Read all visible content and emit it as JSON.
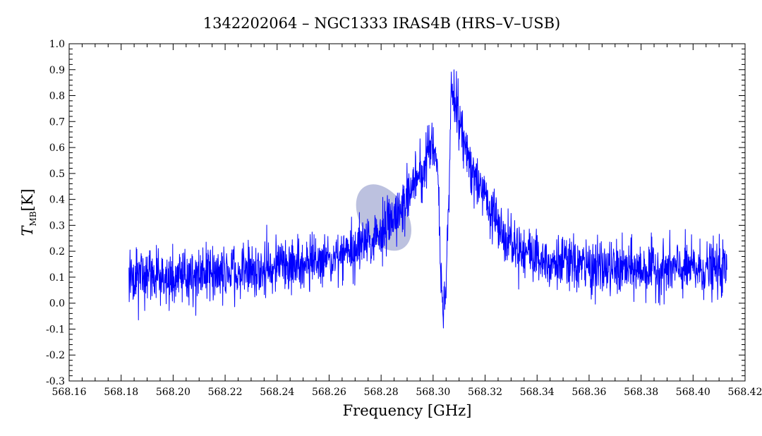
{
  "chart_data": {
    "type": "line",
    "title": "1342202064 – NGC1333 IRAS4B (HRS–V–USB)",
    "xlabel": "Frequency [GHz]",
    "ylabel_main": "T",
    "ylabel_sub": "MB",
    "ylabel_unit": "[K]",
    "xlim": [
      568.16,
      568.42
    ],
    "ylim": [
      -0.3,
      1.0
    ],
    "x_ticks": [
      "568.16",
      "568.18",
      "568.20",
      "568.22",
      "568.24",
      "568.26",
      "568.28",
      "568.30",
      "568.32",
      "568.34",
      "568.36",
      "568.38",
      "568.40",
      "568.42"
    ],
    "y_ticks": [
      "-0.3",
      "-0.2",
      "-0.1",
      "0.0",
      "0.1",
      "0.2",
      "0.3",
      "0.4",
      "0.5",
      "0.6",
      "0.7",
      "0.8",
      "0.9",
      "1.0"
    ],
    "grid": false,
    "line_color": "#0000ff",
    "highlight_color": "#6a76b8",
    "series": [
      {
        "x": [
          568.183,
          568.19,
          568.2,
          568.21,
          568.22,
          568.23,
          568.24,
          568.25,
          568.255,
          568.26,
          568.265,
          568.27,
          568.275,
          568.28,
          568.285,
          568.288,
          568.291,
          568.294,
          568.297,
          568.299,
          568.3,
          568.301,
          568.302,
          568.303,
          568.304,
          568.305,
          568.306,
          568.307,
          568.308,
          568.31,
          568.312,
          568.314,
          568.317,
          568.32,
          568.324,
          568.328,
          568.332,
          568.336,
          568.34,
          568.35,
          568.36,
          568.37,
          568.38,
          568.39,
          568.4,
          568.413
        ],
        "y": [
          0.1,
          0.1,
          0.1,
          0.11,
          0.12,
          0.13,
          0.14,
          0.15,
          0.16,
          0.17,
          0.19,
          0.21,
          0.24,
          0.27,
          0.32,
          0.37,
          0.42,
          0.48,
          0.55,
          0.6,
          0.62,
          0.58,
          0.45,
          0.1,
          -0.03,
          0.05,
          0.4,
          0.86,
          0.82,
          0.7,
          0.62,
          0.55,
          0.47,
          0.4,
          0.33,
          0.27,
          0.23,
          0.2,
          0.18,
          0.15,
          0.14,
          0.13,
          0.13,
          0.13,
          0.13,
          0.13
        ]
      }
    ],
    "highlight_region": {
      "x_center": 568.281,
      "y_center": 0.33,
      "x_halfwidth": 0.009,
      "y_halfwidth": 0.14
    }
  }
}
